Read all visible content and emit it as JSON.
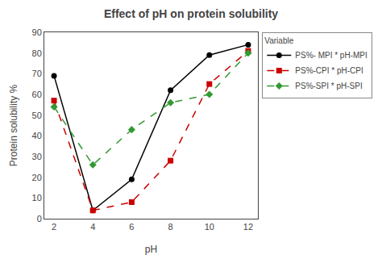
{
  "chart_data": {
    "type": "line",
    "title": "Effect of pH on protein solubility",
    "x_label": "pH",
    "y_label": "Protein solubility %",
    "x": [
      2,
      4,
      6,
      8,
      10,
      12
    ],
    "series": [
      {
        "name": "PS%- MPI * pH-MPI",
        "color": "#000000",
        "marker": "circle",
        "line_style": "solid",
        "values": [
          69,
          4,
          19,
          62,
          79,
          84
        ]
      },
      {
        "name": "PS%-CPI * pH-CPI",
        "color": "#cc0000",
        "marker": "square",
        "line_style": "dash",
        "values": [
          57,
          4,
          8,
          28,
          65,
          81
        ]
      },
      {
        "name": "PS%-SPI * pH-SPI",
        "color": "#339933",
        "marker": "diamond",
        "line_style": "dash",
        "values": [
          54,
          26,
          43,
          56,
          60,
          80
        ]
      }
    ],
    "legend_title": "Variable",
    "legend": "upper right",
    "xlim": [
      1.5,
      12.5
    ],
    "xticks": [
      2,
      4,
      6,
      8,
      10,
      12
    ],
    "ylim": [
      0,
      90
    ],
    "yticks": [
      0,
      10,
      20,
      30,
      40,
      50,
      60,
      70,
      80,
      90
    ],
    "grid": false
  }
}
